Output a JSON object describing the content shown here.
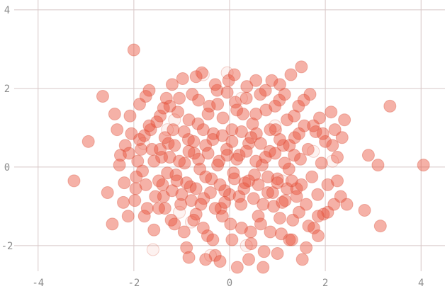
{
  "chart_data": {
    "type": "scatter",
    "title": "",
    "xlabel": "",
    "ylabel": "",
    "xlim": [
      -4.5,
      4.5
    ],
    "ylim": [
      -2.65,
      4.25
    ],
    "x_ticks": [
      -4,
      -2,
      0,
      2,
      4
    ],
    "y_ticks": [
      -2,
      0,
      2,
      4
    ],
    "x_tick_labels": [
      "-4",
      "-2",
      "0",
      "2",
      "4"
    ],
    "y_tick_labels": [
      "-2",
      "0",
      "2",
      "4"
    ],
    "grid": true,
    "legend": "none",
    "colors": {
      "point": "#e9533b",
      "point_stroke": "#d64a33",
      "grid": "#d8c7c7",
      "tick": "#8b8b8b",
      "background": "#ffffff"
    },
    "series": [
      {
        "points": [
          [
            -3.25,
            -0.35
          ],
          [
            -2.95,
            0.65
          ],
          [
            -2.65,
            1.8
          ],
          [
            -2.55,
            -0.65
          ],
          [
            -2.45,
            -1.45
          ],
          [
            -2.35,
            0.95
          ],
          [
            -2.28,
            0.3
          ],
          [
            -2.22,
            -0.9
          ],
          [
            -2.18,
            0.55
          ],
          [
            -2.12,
            -1.25
          ],
          [
            -2.08,
            1.3
          ],
          [
            -2.0,
            2.98
          ],
          [
            -1.96,
            -0.55
          ],
          [
            -1.92,
            0.15
          ],
          [
            -1.88,
            1.6
          ],
          [
            -1.82,
            -0.1
          ],
          [
            -1.78,
            0.8
          ],
          [
            -1.72,
            -1.05
          ],
          [
            -1.68,
            1.95
          ],
          [
            -1.62,
            0.45
          ],
          [
            -1.58,
            -1.6
          ],
          [
            -1.52,
            1.15
          ],
          [
            -1.48,
            -0.35
          ],
          [
            -1.42,
            0.25
          ],
          [
            -1.38,
            -0.75
          ],
          [
            -1.32,
            1.75
          ],
          [
            -1.28,
            0.6
          ],
          [
            -1.22,
            -1.35
          ],
          [
            -1.18,
            0.95
          ],
          [
            -1.12,
            -0.2
          ],
          [
            -1.08,
            1.4
          ],
          [
            -1.02,
            -0.95
          ],
          [
            -0.98,
            2.25
          ],
          [
            -0.94,
            0.1
          ],
          [
            -0.9,
            -2.05
          ],
          [
            -0.86,
            0.7
          ],
          [
            -0.82,
            -0.5
          ],
          [
            -0.78,
            1.85
          ],
          [
            -0.74,
            0.35
          ],
          [
            -0.7,
            -1.2
          ],
          [
            -0.66,
            1.1
          ],
          [
            -0.62,
            -0.05
          ],
          [
            -0.58,
            2.4
          ],
          [
            -0.54,
            -0.8
          ],
          [
            -0.5,
            0.55
          ],
          [
            -0.46,
            -1.75
          ],
          [
            -0.42,
            1.55
          ],
          [
            -0.38,
            -0.3
          ],
          [
            -0.34,
            0.85
          ],
          [
            -0.3,
            -2.25
          ],
          [
            -0.26,
            1.95
          ],
          [
            -0.22,
            0.15
          ],
          [
            -0.18,
            -1.05
          ],
          [
            -0.14,
            1.25
          ],
          [
            -0.1,
            -0.6
          ],
          [
            -0.06,
            0.45
          ],
          [
            -0.02,
            2.2
          ],
          [
            0.02,
            -1.45
          ],
          [
            0.05,
            0.95
          ],
          [
            0.08,
            -0.15
          ],
          [
            0.12,
            1.65
          ],
          [
            0.16,
            -2.55
          ],
          [
            0.2,
            0.3
          ],
          [
            0.24,
            -0.95
          ],
          [
            0.28,
            1.35
          ],
          [
            0.32,
            -0.4
          ],
          [
            0.36,
            2.05
          ],
          [
            0.4,
            0.6
          ],
          [
            0.44,
            -1.65
          ],
          [
            0.48,
            1.1
          ],
          [
            0.52,
            -0.2
          ],
          [
            0.56,
            0.85
          ],
          [
            0.6,
            -1.25
          ],
          [
            0.64,
            1.85
          ],
          [
            0.68,
            0.05
          ],
          [
            0.72,
            -2.15
          ],
          [
            0.76,
            1.45
          ],
          [
            0.8,
            -0.65
          ],
          [
            0.84,
            0.4
          ],
          [
            0.88,
            2.2
          ],
          [
            0.92,
            -1.0
          ],
          [
            0.96,
            0.95
          ],
          [
            1.0,
            -0.3
          ],
          [
            1.04,
            1.7
          ],
          [
            1.08,
            -1.7
          ],
          [
            1.12,
            0.55
          ],
          [
            1.16,
            -0.85
          ],
          [
            1.2,
            1.2
          ],
          [
            1.24,
            -0.05
          ],
          [
            1.28,
            2.35
          ],
          [
            1.32,
            -1.35
          ],
          [
            1.36,
            0.75
          ],
          [
            1.4,
            -0.55
          ],
          [
            1.44,
            1.55
          ],
          [
            1.48,
            0.2
          ],
          [
            1.52,
            -2.35
          ],
          [
            1.56,
            1.05
          ],
          [
            1.6,
            -0.95
          ],
          [
            1.64,
            0.45
          ],
          [
            1.68,
            1.85
          ],
          [
            1.72,
            -0.25
          ],
          [
            1.76,
            -1.55
          ],
          [
            1.8,
            0.9
          ],
          [
            1.84,
            -0.7
          ],
          [
            1.88,
            1.25
          ],
          [
            1.92,
            0.1
          ],
          [
            1.96,
            -1.2
          ],
          [
            2.0,
            0.65
          ],
          [
            2.05,
            -0.45
          ],
          [
            2.12,
            1.4
          ],
          [
            2.18,
            -0.95
          ],
          [
            2.25,
            0.25
          ],
          [
            2.32,
            -0.75
          ],
          [
            2.4,
            1.2
          ],
          [
            2.82,
            -1.1
          ],
          [
            2.9,
            0.3
          ],
          [
            3.1,
            0.05
          ],
          [
            3.15,
            -1.5
          ],
          [
            3.35,
            1.55
          ],
          [
            4.05,
            0.05
          ],
          [
            -1.4,
            -0.45
          ],
          [
            -1.3,
            -0.15
          ],
          [
            -1.2,
            -0.6
          ],
          [
            -1.1,
            -0.35
          ],
          [
            -1.0,
            -0.7
          ],
          [
            -0.9,
            -0.4
          ],
          [
            -0.8,
            -0.85
          ],
          [
            -0.7,
            -0.55
          ],
          [
            -0.6,
            -0.95
          ],
          [
            -0.5,
            -0.25
          ],
          [
            -0.4,
            -0.65
          ],
          [
            -0.3,
            -1.05
          ],
          [
            -0.2,
            -0.45
          ],
          [
            -0.1,
            -0.9
          ],
          [
            0.0,
            -0.7
          ],
          [
            0.1,
            -0.3
          ],
          [
            0.2,
            -0.75
          ],
          [
            0.3,
            -0.55
          ],
          [
            0.4,
            -0.35
          ],
          [
            0.5,
            -0.8
          ],
          [
            0.6,
            -0.45
          ],
          [
            0.7,
            -0.95
          ],
          [
            0.8,
            -0.25
          ],
          [
            0.9,
            -0.65
          ],
          [
            1.0,
            -0.4
          ],
          [
            1.1,
            -0.9
          ],
          [
            1.2,
            -0.55
          ],
          [
            1.3,
            -0.35
          ],
          [
            1.4,
            -0.75
          ],
          [
            1.5,
            -0.45
          ],
          [
            -1.45,
            0.45
          ],
          [
            -1.35,
            0.75
          ],
          [
            -1.25,
            0.25
          ],
          [
            -1.15,
            0.55
          ],
          [
            -1.05,
            0.15
          ],
          [
            -0.95,
            0.9
          ],
          [
            -0.85,
            0.4
          ],
          [
            -0.75,
            0.65
          ],
          [
            -0.65,
            0.2
          ],
          [
            -0.55,
            0.95
          ],
          [
            -0.45,
            0.35
          ],
          [
            -0.35,
            0.7
          ],
          [
            -0.25,
            0.05
          ],
          [
            -0.15,
            0.8
          ],
          [
            -0.05,
            0.3
          ],
          [
            0.05,
            0.65
          ],
          [
            0.15,
            0.2
          ],
          [
            0.25,
            0.9
          ],
          [
            0.35,
            0.4
          ],
          [
            0.45,
            0.75
          ],
          [
            0.55,
            0.15
          ],
          [
            0.65,
            0.6
          ],
          [
            0.75,
            0.25
          ],
          [
            0.85,
            0.95
          ],
          [
            0.95,
            0.35
          ],
          [
            1.05,
            0.7
          ],
          [
            1.15,
            0.1
          ],
          [
            1.25,
            0.55
          ],
          [
            1.35,
            0.3
          ],
          [
            1.45,
            0.85
          ],
          [
            -2.05,
            0.85
          ],
          [
            -1.95,
            -0.25
          ],
          [
            -1.85,
            0.45
          ],
          [
            -1.75,
            -0.45
          ],
          [
            -1.65,
            0.95
          ],
          [
            -1.55,
            -0.75
          ],
          [
            -1.45,
            1.3
          ],
          [
            -1.35,
            -1.05
          ],
          [
            -1.25,
            1.55
          ],
          [
            -1.15,
            -1.45
          ],
          [
            -1.05,
            1.75
          ],
          [
            -0.95,
            -1.65
          ],
          [
            -0.85,
            1.2
          ],
          [
            -0.75,
            -1.35
          ],
          [
            -0.65,
            1.7
          ],
          [
            -0.55,
            -1.55
          ],
          [
            -0.45,
            1.35
          ],
          [
            -0.35,
            -1.85
          ],
          [
            -0.25,
            1.6
          ],
          [
            -0.15,
            -1.25
          ],
          [
            -0.05,
            1.9
          ],
          [
            0.05,
            -1.85
          ],
          [
            0.15,
            1.45
          ],
          [
            0.25,
            -1.55
          ],
          [
            0.35,
            1.75
          ],
          [
            0.45,
            -1.95
          ],
          [
            0.55,
            1.35
          ],
          [
            0.65,
            -1.45
          ],
          [
            0.75,
            1.95
          ],
          [
            0.85,
            -1.65
          ],
          [
            0.95,
            1.55
          ],
          [
            1.05,
            -1.3
          ],
          [
            1.15,
            1.85
          ],
          [
            1.25,
            -1.85
          ],
          [
            1.35,
            1.3
          ],
          [
            1.45,
            -1.15
          ],
          [
            1.55,
            1.7
          ],
          [
            1.65,
            -1.5
          ],
          [
            1.75,
            1.05
          ],
          [
            1.85,
            -1.25
          ],
          [
            1.95,
            0.85
          ],
          [
            2.05,
            -1.15
          ],
          [
            2.15,
            0.55
          ],
          [
            2.25,
            -0.35
          ],
          [
            2.35,
            0.75
          ],
          [
            -2.3,
            0.05
          ],
          [
            -2.2,
            -0.4
          ],
          [
            -2.1,
            0.35
          ],
          [
            -1.98,
            -0.85
          ],
          [
            -1.88,
            0.7
          ],
          [
            -1.78,
            -1.25
          ],
          [
            -1.68,
            1.05
          ],
          [
            -1.58,
            0.15
          ],
          [
            -1.48,
            -1.05
          ],
          [
            -1.38,
            1.5
          ],
          [
            -0.3,
            2.1
          ],
          [
            0.1,
            2.35
          ],
          [
            0.55,
            2.2
          ],
          [
            1.05,
            2.1
          ],
          [
            1.5,
            2.55
          ],
          [
            -0.7,
            2.3
          ],
          [
            -1.2,
            2.1
          ],
          [
            -1.75,
            1.8
          ],
          [
            -2.4,
            1.35
          ],
          [
            -0.85,
            -2.3
          ],
          [
            -0.2,
            -2.4
          ],
          [
            0.4,
            -2.35
          ],
          [
            1.0,
            -2.2
          ],
          [
            1.6,
            -2.05
          ],
          [
            0.7,
            -2.55
          ],
          [
            -0.5,
            -2.35
          ],
          [
            1.3,
            -1.85
          ],
          [
            1.85,
            -1.75
          ],
          [
            2.2,
            0.95
          ],
          [
            2.45,
            -0.95
          ]
        ],
        "faint_points": [
          [
            -1.05,
            -1.15
          ],
          [
            -0.55,
            2.35
          ],
          [
            -0.05,
            2.4
          ],
          [
            0.35,
            -2.0
          ],
          [
            0.95,
            1.05
          ],
          [
            -1.6,
            -2.1
          ],
          [
            -1.3,
            0.95
          ],
          [
            -0.4,
            -2.25
          ],
          [
            0.25,
            1.75
          ],
          [
            1.75,
            0.4
          ],
          [
            -1.8,
            0.6
          ],
          [
            -1.15,
            1.2
          ],
          [
            -0.8,
            -1.4
          ],
          [
            1.1,
            -0.35
          ],
          [
            2.15,
            0.15
          ]
        ]
      }
    ]
  }
}
